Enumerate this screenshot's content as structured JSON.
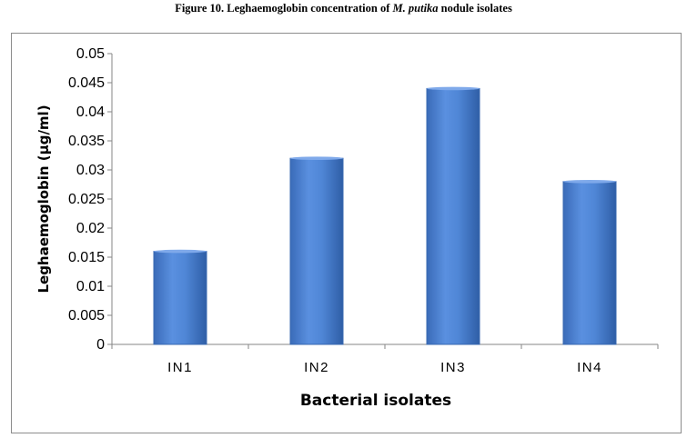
{
  "caption": {
    "prefix": "Figure 10. Leghaemoglobin concentration of",
    "species": "M. putika",
    "suffix": "nodule  isolates"
  },
  "chart_data": {
    "type": "bar",
    "categories": [
      "IN1",
      "IN2",
      "IN3",
      "IN4"
    ],
    "values": [
      0.016,
      0.032,
      0.044,
      0.028
    ],
    "xlabel": "Bacterial isolates",
    "ylabel": "Leghaemoglobin (µg/ml)",
    "ylim": [
      0,
      0.05
    ],
    "yticks": [
      "0",
      "0.005",
      "0.01",
      "0.015",
      "0.02",
      "0.025",
      "0.03",
      "0.035",
      "0.04",
      "0.045",
      "0.05"
    ],
    "grid": false,
    "legend": "none",
    "bar_color": "#4a7fcc",
    "bar_edge_color": "#3868b0"
  }
}
